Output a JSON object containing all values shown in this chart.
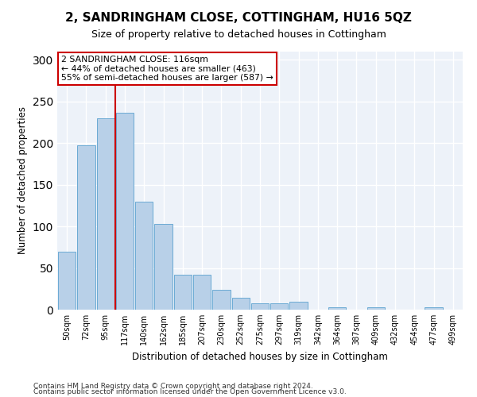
{
  "title": "2, SANDRINGHAM CLOSE, COTTINGHAM, HU16 5QZ",
  "subtitle": "Size of property relative to detached houses in Cottingham",
  "xlabel": "Distribution of detached houses by size in Cottingham",
  "ylabel": "Number of detached properties",
  "bar_labels": [
    "50sqm",
    "72sqm",
    "95sqm",
    "117sqm",
    "140sqm",
    "162sqm",
    "185sqm",
    "207sqm",
    "230sqm",
    "252sqm",
    "275sqm",
    "297sqm",
    "319sqm",
    "342sqm",
    "364sqm",
    "387sqm",
    "409sqm",
    "432sqm",
    "454sqm",
    "477sqm",
    "499sqm"
  ],
  "bar_values": [
    70,
    197,
    230,
    237,
    130,
    103,
    42,
    42,
    24,
    14,
    8,
    8,
    10,
    0,
    3,
    0,
    3,
    0,
    0,
    3,
    0
  ],
  "bar_color": "#b8d0e8",
  "bar_edgecolor": "#6aaad4",
  "vline_color": "#cc0000",
  "vline_pos": 2.5,
  "annotation_box_text": "2 SANDRINGHAM CLOSE: 116sqm\n← 44% of detached houses are smaller (463)\n55% of semi-detached houses are larger (587) →",
  "ylim": [
    0,
    310
  ],
  "yticks": [
    0,
    50,
    100,
    150,
    200,
    250,
    300
  ],
  "bg_color": "#edf2f9",
  "grid_color": "#ffffff",
  "fig_bg": "#ffffff",
  "footer1": "Contains HM Land Registry data © Crown copyright and database right 2024.",
  "footer2": "Contains public sector information licensed under the Open Government Licence v3.0."
}
